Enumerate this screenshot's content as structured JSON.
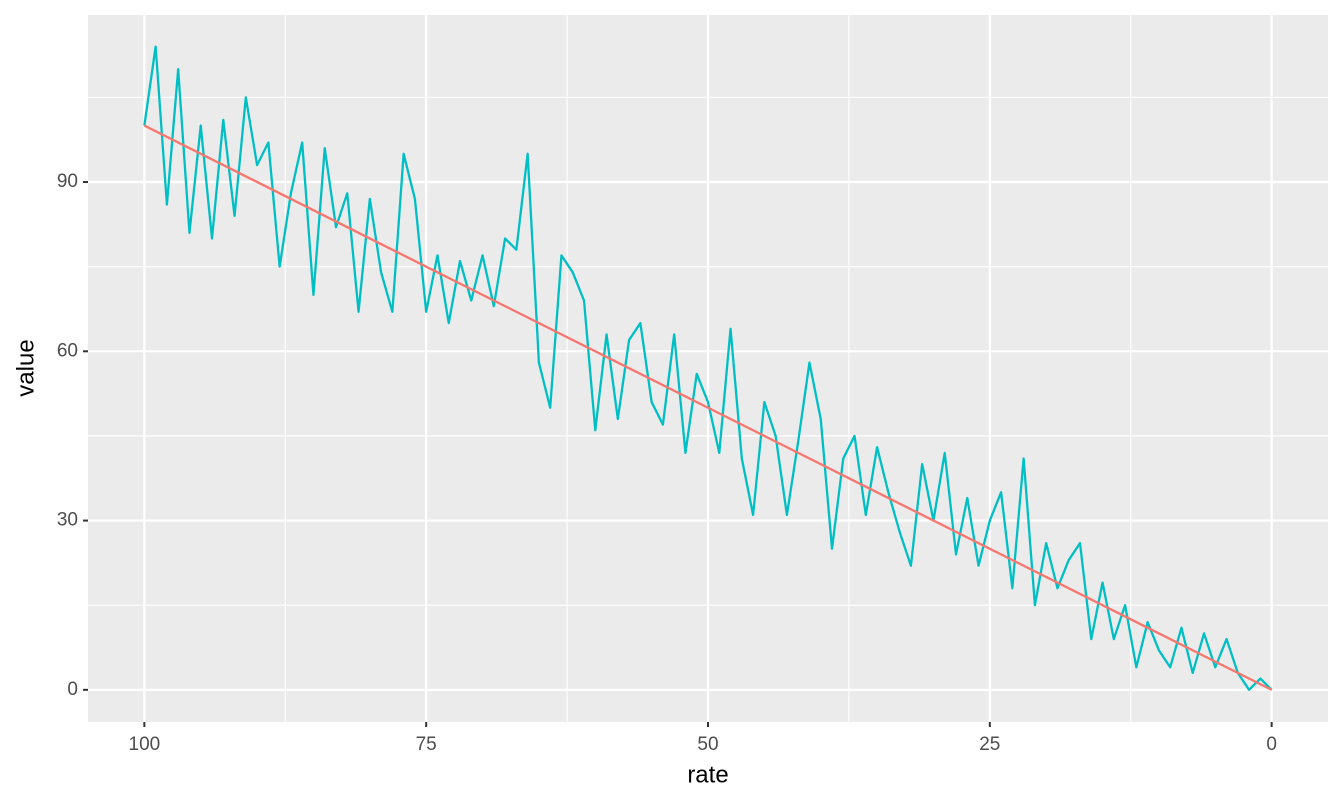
{
  "chart_data": {
    "type": "line",
    "x_label": "rate",
    "y_label": "value",
    "xlim": [
      -5,
      105
    ],
    "x_reverse": true,
    "xticks": [
      100,
      75,
      50,
      25,
      0
    ],
    "ylim": [
      -5.7,
      119.6
    ],
    "yticks": [
      0,
      30,
      60,
      90
    ],
    "grid": true,
    "background": "#ebebeb",
    "series": [
      {
        "color": "#00bfc4",
        "x": [
          100,
          99,
          98,
          97,
          96,
          95,
          94,
          93,
          92,
          91,
          90,
          89,
          88,
          87,
          86,
          85,
          84,
          83,
          82,
          81,
          80,
          79,
          78,
          77,
          76,
          75,
          74,
          73,
          72,
          71,
          70,
          69,
          68,
          67,
          66,
          65,
          64,
          63,
          62,
          61,
          60,
          59,
          58,
          57,
          56,
          55,
          54,
          53,
          52,
          51,
          50,
          49,
          48,
          47,
          46,
          45,
          44,
          43,
          42,
          41,
          40,
          39,
          38,
          37,
          36,
          35,
          34,
          33,
          32,
          31,
          30,
          29,
          28,
          27,
          26,
          25,
          24,
          23,
          22,
          21,
          20,
          19,
          18,
          17,
          16,
          15,
          14,
          13,
          12,
          11,
          10,
          9,
          8,
          7,
          6,
          5,
          4,
          3,
          2,
          1,
          0
        ],
        "values": [
          100,
          114,
          86,
          110,
          81,
          100,
          80,
          101,
          84,
          105,
          93,
          97,
          75,
          88,
          97,
          70,
          96,
          82,
          88,
          67,
          87,
          74,
          67,
          95,
          87,
          67,
          77,
          65,
          76,
          69,
          77,
          68,
          80,
          78,
          95,
          58,
          50,
          77,
          74,
          69,
          46,
          63,
          48,
          62,
          65,
          51,
          47,
          63,
          42,
          56,
          51,
          42,
          64,
          41,
          31,
          51,
          45,
          31,
          44,
          58,
          48,
          25,
          41,
          45,
          31,
          43,
          35,
          28,
          22,
          40,
          30,
          42,
          24,
          34,
          22,
          30,
          35,
          18,
          41,
          15,
          26,
          18,
          23,
          26,
          9,
          19,
          9,
          15,
          4,
          12,
          7,
          4,
          11,
          3,
          10,
          4,
          9,
          3,
          0,
          2,
          0
        ]
      },
      {
        "color": "#f8766d",
        "x": [
          100,
          0
        ],
        "values": [
          100,
          0
        ]
      }
    ]
  }
}
